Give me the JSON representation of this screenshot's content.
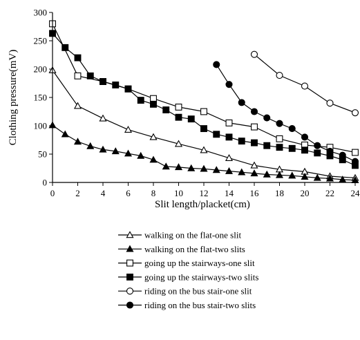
{
  "chart_data": {
    "type": "line",
    "title": "",
    "xlabel": "Slit length/placket(cm)",
    "ylabel": "Clothing pressure(mV)",
    "xlim": [
      0,
      24
    ],
    "ylim": [
      0,
      300
    ],
    "xticks": [
      0,
      2,
      4,
      6,
      8,
      10,
      12,
      14,
      16,
      18,
      20,
      22,
      24
    ],
    "yticks": [
      0,
      50,
      100,
      150,
      200,
      250,
      300
    ],
    "grid": false,
    "legend_position": "bottom",
    "series": [
      {
        "name": "walking on the flat-one slit",
        "marker": "triangle-open",
        "points": [
          [
            0,
            198
          ],
          [
            2,
            135
          ],
          [
            4,
            113
          ],
          [
            6,
            93
          ],
          [
            8,
            80
          ],
          [
            10,
            68
          ],
          [
            12,
            57
          ],
          [
            14,
            43
          ],
          [
            16,
            30
          ],
          [
            18,
            23
          ],
          [
            20,
            19
          ],
          [
            22,
            11
          ],
          [
            24,
            8
          ]
        ]
      },
      {
        "name": "walking on the flat-two slits",
        "marker": "triangle-filled",
        "points": [
          [
            0,
            101
          ],
          [
            1,
            85
          ],
          [
            2,
            72
          ],
          [
            3,
            64
          ],
          [
            4,
            58
          ],
          [
            5,
            55
          ],
          [
            6,
            51
          ],
          [
            7,
            47
          ],
          [
            8,
            40
          ],
          [
            9,
            28
          ],
          [
            10,
            27
          ],
          [
            11,
            25
          ],
          [
            12,
            24
          ],
          [
            13,
            22
          ],
          [
            14,
            20
          ],
          [
            15,
            18
          ],
          [
            16,
            16
          ],
          [
            17,
            14
          ],
          [
            18,
            13
          ],
          [
            19,
            12
          ],
          [
            20,
            10
          ],
          [
            21,
            8
          ],
          [
            22,
            7
          ],
          [
            23,
            5
          ],
          [
            24,
            4
          ]
        ]
      },
      {
        "name": "going up the stairways-one slit",
        "marker": "square-open",
        "points": [
          [
            0,
            280
          ],
          [
            2,
            188
          ],
          [
            4,
            178
          ],
          [
            6,
            165
          ],
          [
            8,
            148
          ],
          [
            10,
            133
          ],
          [
            12,
            125
          ],
          [
            14,
            105
          ],
          [
            16,
            98
          ],
          [
            18,
            77
          ],
          [
            20,
            66
          ],
          [
            22,
            62
          ],
          [
            24,
            53
          ]
        ]
      },
      {
        "name": "going up the stairways-two slits",
        "marker": "square-filled",
        "points": [
          [
            0,
            263
          ],
          [
            1,
            238
          ],
          [
            2,
            220
          ],
          [
            3,
            188
          ],
          [
            4,
            178
          ],
          [
            5,
            172
          ],
          [
            6,
            165
          ],
          [
            7,
            145
          ],
          [
            8,
            138
          ],
          [
            9,
            128
          ],
          [
            10,
            115
          ],
          [
            11,
            112
          ],
          [
            12,
            95
          ],
          [
            13,
            85
          ],
          [
            14,
            80
          ],
          [
            15,
            73
          ],
          [
            16,
            70
          ],
          [
            17,
            65
          ],
          [
            18,
            62
          ],
          [
            19,
            60
          ],
          [
            20,
            57
          ],
          [
            21,
            52
          ],
          [
            22,
            47
          ],
          [
            23,
            40
          ],
          [
            24,
            30
          ]
        ]
      },
      {
        "name": "riding on the bus stair-one slit",
        "marker": "circle-open",
        "points": [
          [
            16,
            226
          ],
          [
            18,
            189
          ],
          [
            20,
            170
          ],
          [
            22,
            140
          ],
          [
            24,
            123
          ]
        ]
      },
      {
        "name": "riding on the bus stair-two slits",
        "marker": "circle-filled",
        "points": [
          [
            13,
            208
          ],
          [
            14,
            173
          ],
          [
            15,
            141
          ],
          [
            16,
            125
          ],
          [
            17,
            114
          ],
          [
            18,
            104
          ],
          [
            19,
            95
          ],
          [
            20,
            80
          ],
          [
            21,
            65
          ],
          [
            22,
            55
          ],
          [
            23,
            48
          ],
          [
            24,
            37
          ]
        ]
      }
    ]
  }
}
